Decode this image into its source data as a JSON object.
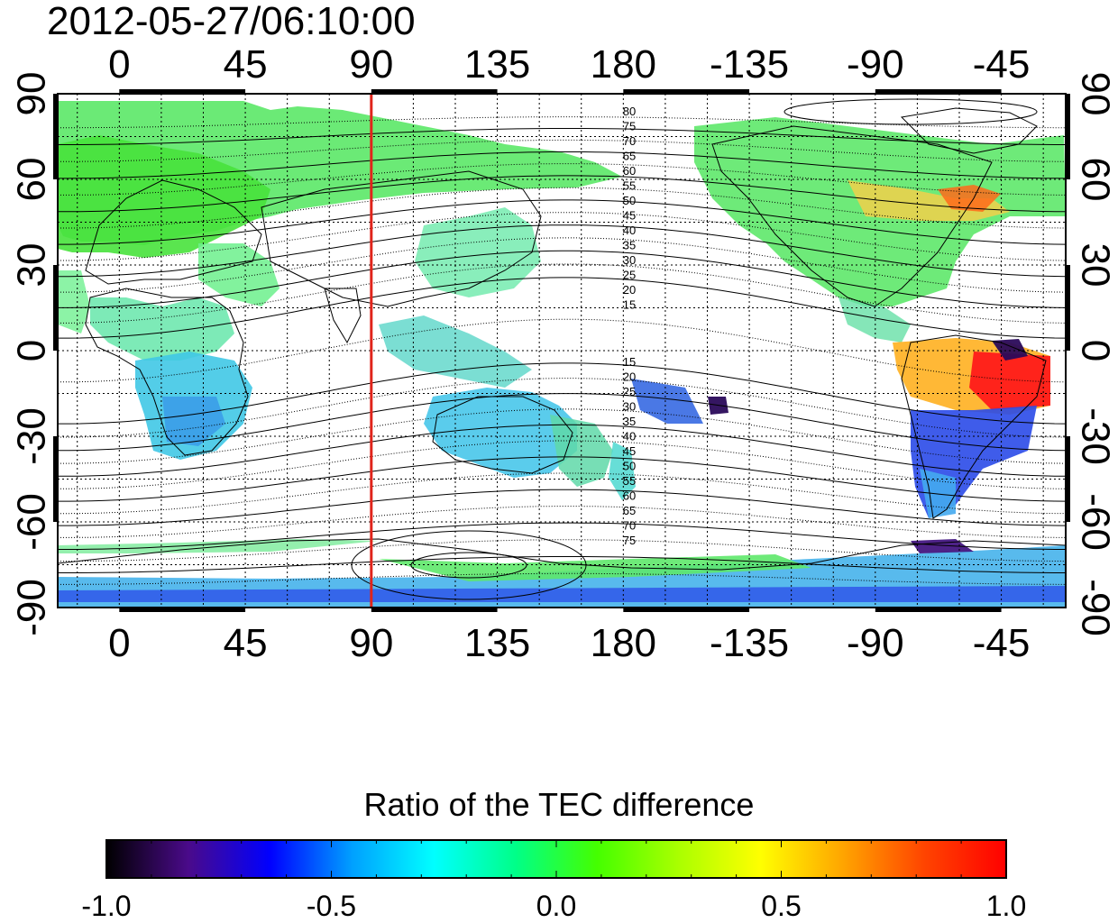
{
  "title": "2012-05-27/06:10:00",
  "map": {
    "projection": "equirectangular",
    "lon_center": 90,
    "top_lon_ticks": [
      "0",
      "45",
      "90",
      "135",
      "180",
      "-135",
      "-90",
      "-45"
    ],
    "bottom_lon_ticks": [
      "0",
      "45",
      "90",
      "135",
      "180",
      "-135",
      "-90",
      "-45"
    ],
    "left_lat_ticks": [
      "90",
      "60",
      "30",
      "0",
      "-30",
      "-60",
      "-90"
    ],
    "right_lat_ticks": [
      "90",
      "60",
      "30",
      "0",
      "-30",
      "-60",
      "-90"
    ],
    "marker_line_lon": 90,
    "marker_line_color": "#e0241b",
    "contour_labels_north": [
      "80",
      "75",
      "70",
      "65",
      "60",
      "55",
      "50",
      "45",
      "40",
      "35",
      "30",
      "25",
      "20",
      "15"
    ],
    "contour_labels_south": [
      "15",
      "20",
      "25",
      "30",
      "35",
      "40",
      "45",
      "50",
      "55",
      "60",
      "65",
      "70",
      "75"
    ],
    "grid": "dotted"
  },
  "colorbar": {
    "title": "Ratio of the TEC difference",
    "min": -1.0,
    "max": 1.0,
    "tick_labels": [
      "-1.0",
      "-0.5",
      "0.0",
      "0.5",
      "1.0"
    ],
    "colormap": [
      "#000000",
      "#4a0a8a",
      "#0000ff",
      "#00a0ff",
      "#00ffff",
      "#00ff88",
      "#44ff00",
      "#aaff00",
      "#ffff00",
      "#ffa500",
      "#ff4400",
      "#ff0000"
    ]
  }
}
